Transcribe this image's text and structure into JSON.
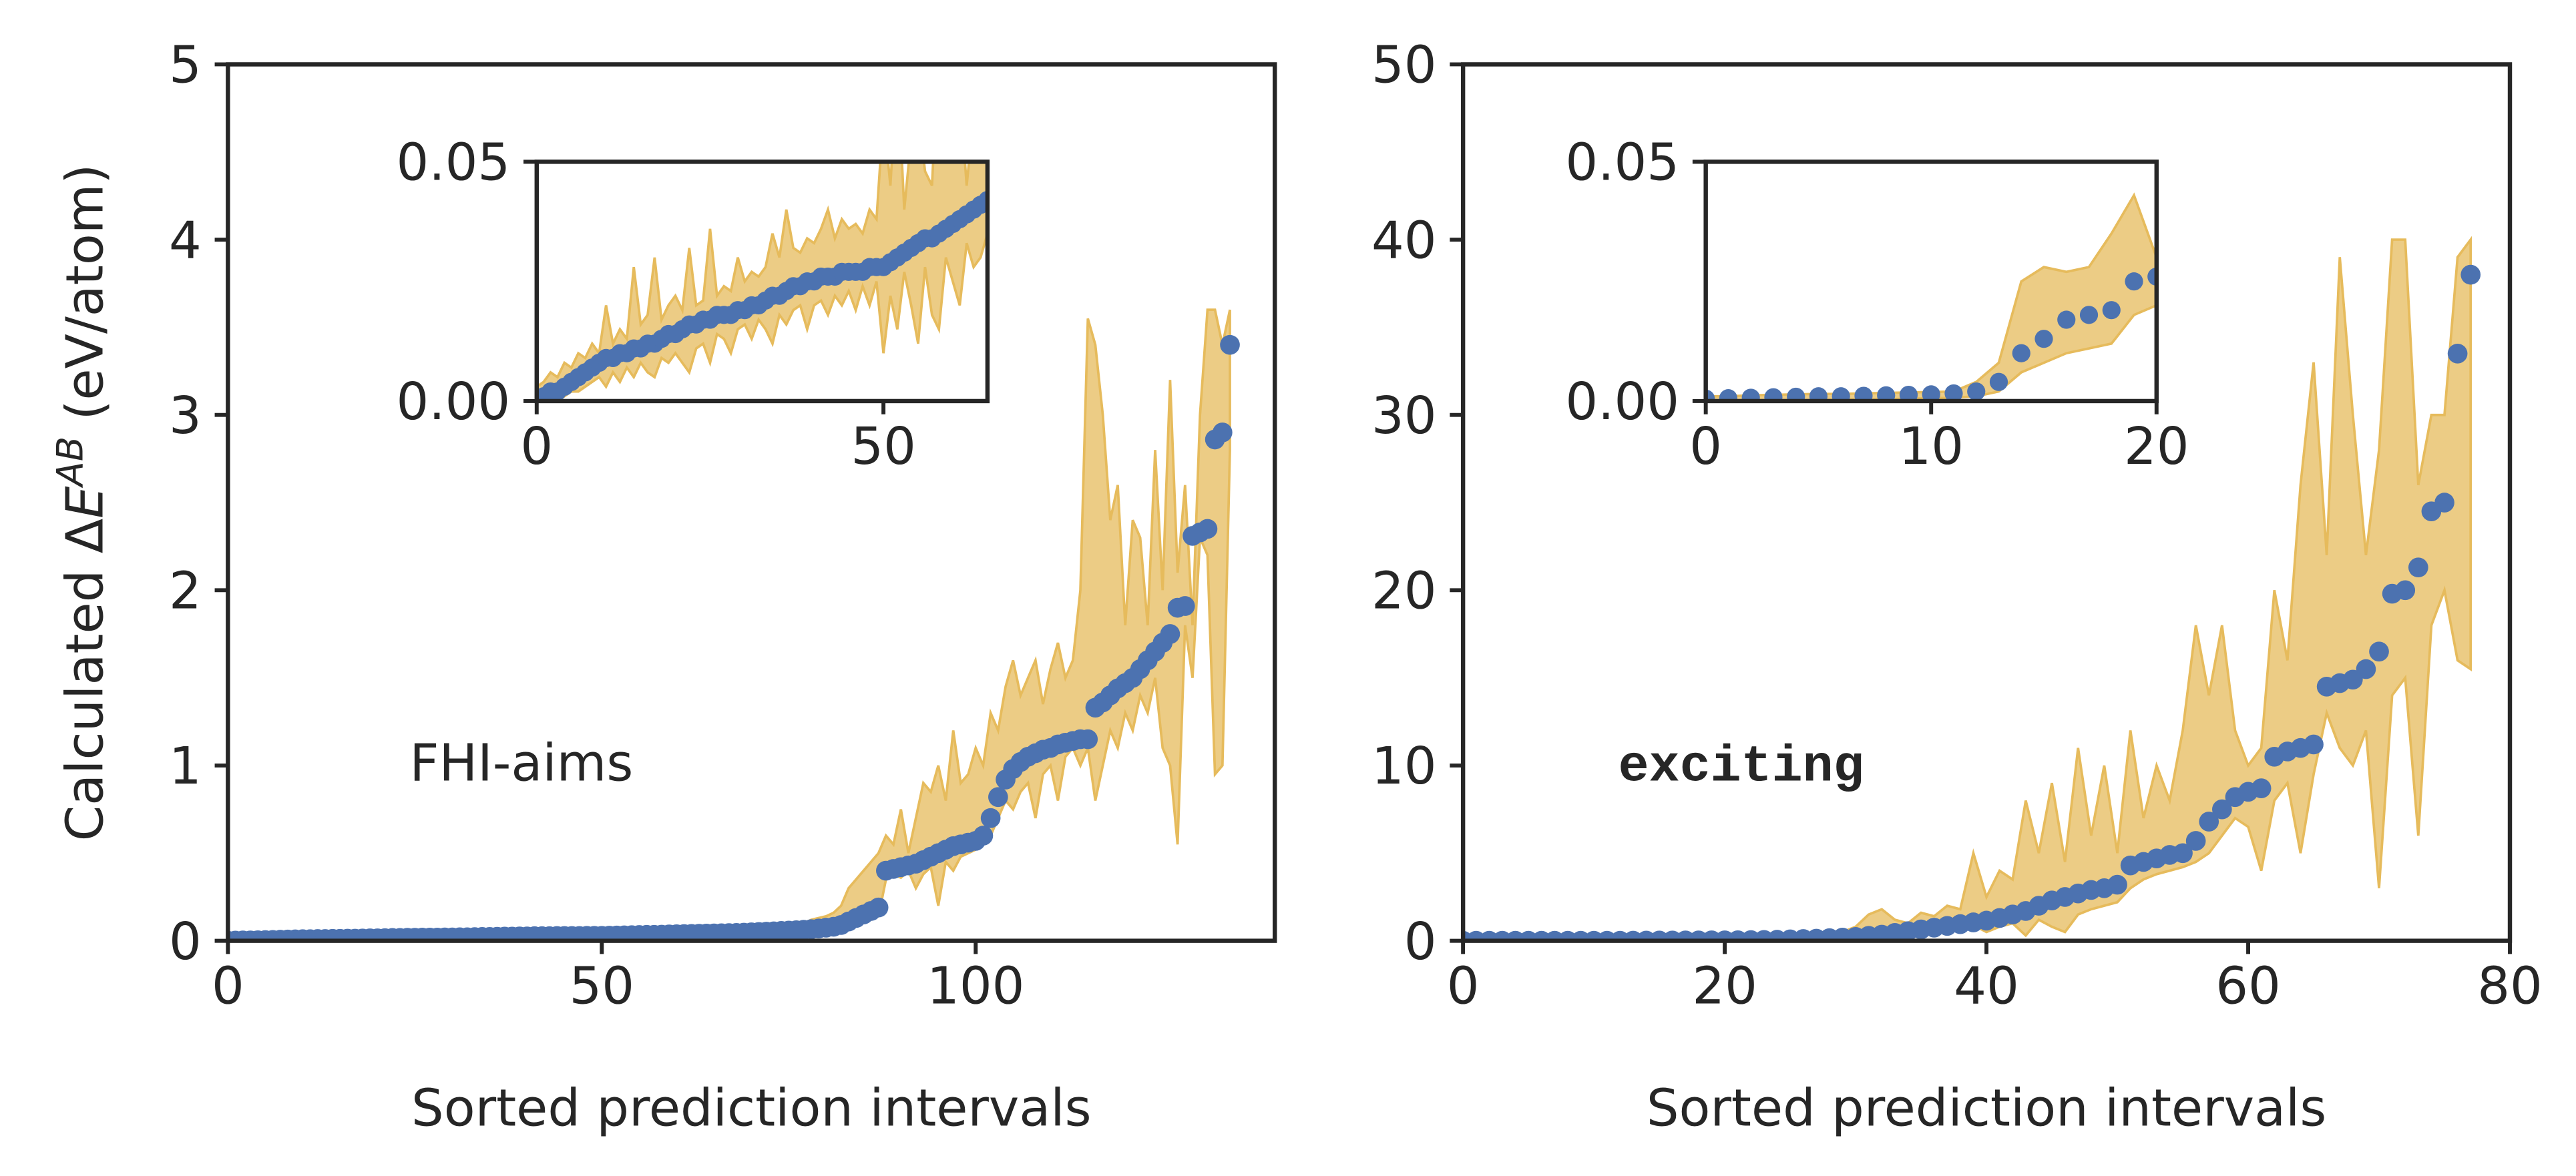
{
  "chart_data": [
    {
      "type": "scatter-band",
      "xlabel": "Sorted prediction intervals",
      "ylabel": {
        "prefix": "Calculated Δ",
        "symbol": "E",
        "superscript": "AB",
        "unit": " (eV/atom)"
      },
      "annotation": "FHI-aims",
      "xlim": [
        0,
        140
      ],
      "ylim": [
        0,
        5
      ],
      "xticks": [
        0,
        50,
        100
      ],
      "yticks": [
        0,
        1,
        2,
        3,
        4,
        5
      ],
      "x": [
        0,
        1,
        2,
        3,
        4,
        5,
        6,
        7,
        8,
        9,
        10,
        11,
        12,
        13,
        14,
        15,
        16,
        17,
        18,
        19,
        20,
        21,
        22,
        23,
        24,
        25,
        26,
        27,
        28,
        29,
        30,
        31,
        32,
        33,
        34,
        35,
        36,
        37,
        38,
        39,
        40,
        41,
        42,
        43,
        44,
        45,
        46,
        47,
        48,
        49,
        50,
        51,
        52,
        53,
        54,
        55,
        56,
        57,
        58,
        59,
        60,
        61,
        62,
        63,
        64,
        65,
        66,
        67,
        68,
        69,
        70,
        71,
        72,
        73,
        74,
        75,
        76,
        77,
        78,
        79,
        80,
        81,
        82,
        83,
        84,
        85,
        86,
        87,
        88,
        89,
        90,
        91,
        92,
        93,
        94,
        95,
        96,
        97,
        98,
        99,
        100,
        101,
        102,
        103,
        104,
        105,
        106,
        107,
        108,
        109,
        110,
        111,
        112,
        113,
        114,
        115,
        116,
        117,
        118,
        119,
        120,
        121,
        122,
        123,
        124,
        125,
        126,
        127,
        128,
        129,
        130,
        131,
        132,
        133,
        134
      ],
      "series": [
        {
          "color": "#4c72b0",
          "band_color": "#e6bb5c",
          "values": [
            0.0,
            0.001,
            0.002,
            0.002,
            0.003,
            0.004,
            0.005,
            0.006,
            0.007,
            0.008,
            0.009,
            0.009,
            0.01,
            0.01,
            0.011,
            0.011,
            0.012,
            0.012,
            0.013,
            0.014,
            0.014,
            0.015,
            0.016,
            0.016,
            0.017,
            0.017,
            0.018,
            0.018,
            0.018,
            0.019,
            0.019,
            0.02,
            0.02,
            0.021,
            0.022,
            0.022,
            0.023,
            0.024,
            0.024,
            0.025,
            0.025,
            0.026,
            0.026,
            0.026,
            0.027,
            0.027,
            0.027,
            0.027,
            0.028,
            0.028,
            0.028,
            0.029,
            0.03,
            0.031,
            0.032,
            0.033,
            0.034,
            0.034,
            0.035,
            0.036,
            0.037,
            0.038,
            0.039,
            0.04,
            0.041,
            0.042,
            0.043,
            0.044,
            0.045,
            0.046,
            0.048,
            0.05,
            0.052,
            0.054,
            0.056,
            0.058,
            0.06,
            0.063,
            0.066,
            0.07,
            0.075,
            0.08,
            0.09,
            0.11,
            0.13,
            0.15,
            0.17,
            0.19,
            0.4,
            0.41,
            0.42,
            0.43,
            0.44,
            0.46,
            0.48,
            0.5,
            0.52,
            0.54,
            0.55,
            0.56,
            0.57,
            0.6,
            0.7,
            0.82,
            0.92,
            0.98,
            1.02,
            1.05,
            1.07,
            1.09,
            1.1,
            1.12,
            1.13,
            1.14,
            1.15,
            1.15,
            1.33,
            1.36,
            1.4,
            1.44,
            1.47,
            1.5,
            1.55,
            1.6,
            1.65,
            1.7,
            1.75,
            1.9,
            1.91,
            2.31,
            2.33,
            2.35,
            2.86,
            2.9,
            3.4
          ],
          "upper": [
            0.003,
            0.004,
            0.006,
            0.005,
            0.008,
            0.007,
            0.01,
            0.009,
            0.012,
            0.01,
            0.02,
            0.012,
            0.015,
            0.013,
            0.028,
            0.016,
            0.018,
            0.03,
            0.017,
            0.02,
            0.022,
            0.019,
            0.032,
            0.02,
            0.021,
            0.036,
            0.022,
            0.024,
            0.023,
            0.03,
            0.025,
            0.027,
            0.026,
            0.028,
            0.035,
            0.03,
            0.04,
            0.032,
            0.031,
            0.034,
            0.033,
            0.036,
            0.04,
            0.034,
            0.038,
            0.036,
            0.037,
            0.035,
            0.04,
            0.038,
            0.06,
            0.045,
            0.07,
            0.04,
            0.055,
            0.06,
            0.048,
            0.045,
            0.075,
            0.05,
            0.055,
            0.065,
            0.045,
            0.06,
            0.07,
            0.075,
            0.065,
            0.07,
            0.08,
            0.075,
            0.08,
            0.085,
            0.09,
            0.095,
            0.1,
            0.09,
            0.11,
            0.1,
            0.12,
            0.13,
            0.14,
            0.16,
            0.2,
            0.3,
            0.35,
            0.4,
            0.45,
            0.5,
            0.6,
            0.55,
            0.75,
            0.5,
            0.7,
            0.9,
            0.85,
            1.0,
            0.8,
            1.2,
            0.9,
            0.95,
            1.1,
            1.0,
            1.3,
            1.2,
            1.45,
            1.6,
            1.4,
            1.5,
            1.6,
            1.35,
            1.55,
            1.7,
            1.5,
            1.6,
            2.0,
            3.55,
            3.4,
            3.0,
            2.4,
            2.6,
            1.8,
            2.4,
            2.3,
            1.8,
            2.8,
            2.0,
            3.2,
            2.1,
            2.6,
            1.8,
            3.0,
            3.6,
            3.6,
            3.4,
            3.6
          ],
          "lower": [
            0,
            0,
            0,
            0,
            0.001,
            0.002,
            0.002,
            0.003,
            0.004,
            0.005,
            0.003,
            0.006,
            0.004,
            0.007,
            0.005,
            0.008,
            0.006,
            0.005,
            0.009,
            0.008,
            0.01,
            0.008,
            0.006,
            0.011,
            0.012,
            0.008,
            0.014,
            0.013,
            0.01,
            0.015,
            0.016,
            0.013,
            0.017,
            0.015,
            0.012,
            0.018,
            0.016,
            0.019,
            0.02,
            0.015,
            0.02,
            0.021,
            0.018,
            0.022,
            0.02,
            0.023,
            0.019,
            0.024,
            0.02,
            0.025,
            0.01,
            0.022,
            0.015,
            0.027,
            0.02,
            0.012,
            0.028,
            0.018,
            0.015,
            0.03,
            0.025,
            0.02,
            0.033,
            0.028,
            0.03,
            0.035,
            0.036,
            0.038,
            0.037,
            0.04,
            0.04,
            0.042,
            0.044,
            0.046,
            0.048,
            0.05,
            0.052,
            0.055,
            0.058,
            0.06,
            0.06,
            0.07,
            0.08,
            0.09,
            0.1,
            0.11,
            0.12,
            0.14,
            0.35,
            0.38,
            0.36,
            0.4,
            0.3,
            0.38,
            0.42,
            0.2,
            0.45,
            0.4,
            0.48,
            0.5,
            0.52,
            0.55,
            0.6,
            0.7,
            0.8,
            0.75,
            0.85,
            0.9,
            0.7,
            0.95,
            1.0,
            0.8,
            1.05,
            1.1,
            1.0,
            1.1,
            0.8,
            1.0,
            1.2,
            1.1,
            1.3,
            1.2,
            1.4,
            1.3,
            1.5,
            1.1,
            1.0,
            0.55,
            1.8,
            1.5,
            2.3,
            2.2,
            0.95,
            1.0,
            2.8
          ]
        }
      ],
      "inset": {
        "xlim": [
          0,
          65
        ],
        "ylim": [
          0,
          0.05
        ],
        "xticks": [
          0,
          50
        ],
        "yticks": [
          {
            "value": 0,
            "label": "0.00"
          },
          {
            "value": 0.05,
            "label": "0.05"
          }
        ]
      }
    },
    {
      "type": "scatter-band",
      "xlabel": "Sorted prediction intervals",
      "annotation": "exciting",
      "xlim": [
        0,
        80
      ],
      "ylim": [
        0,
        50
      ],
      "xticks": [
        0,
        20,
        40,
        60,
        80
      ],
      "yticks": [
        0,
        10,
        20,
        30,
        40,
        50
      ],
      "x": [
        0,
        1,
        2,
        3,
        4,
        5,
        6,
        7,
        8,
        9,
        10,
        11,
        12,
        13,
        14,
        15,
        16,
        17,
        18,
        19,
        20,
        21,
        22,
        23,
        24,
        25,
        26,
        27,
        28,
        29,
        30,
        31,
        32,
        33,
        34,
        35,
        36,
        37,
        38,
        39,
        40,
        41,
        42,
        43,
        44,
        45,
        46,
        47,
        48,
        49,
        50,
        51,
        52,
        53,
        54,
        55,
        56,
        57,
        58,
        59,
        60,
        61,
        62,
        63,
        64,
        65,
        66,
        67,
        68,
        69,
        70,
        71,
        72,
        73,
        74,
        75,
        76,
        77
      ],
      "series": [
        {
          "color": "#4c72b0",
          "band_color": "#e6bb5c",
          "values": [
            0.0005,
            0.0006,
            0.0007,
            0.0008,
            0.0009,
            0.001,
            0.001,
            0.0011,
            0.0012,
            0.0013,
            0.0014,
            0.0016,
            0.002,
            0.004,
            0.01,
            0.013,
            0.017,
            0.018,
            0.019,
            0.025,
            0.026,
            0.03,
            0.04,
            0.05,
            0.06,
            0.08,
            0.1,
            0.12,
            0.15,
            0.18,
            0.22,
            0.28,
            0.35,
            0.45,
            0.55,
            0.65,
            0.75,
            0.85,
            0.95,
            1.05,
            1.15,
            1.3,
            1.5,
            1.7,
            2.0,
            2.3,
            2.5,
            2.7,
            2.9,
            3.0,
            3.2,
            4.3,
            4.5,
            4.7,
            4.9,
            5.0,
            5.7,
            6.8,
            7.5,
            8.2,
            8.5,
            8.7,
            10.5,
            10.8,
            11.0,
            11.2,
            14.5,
            14.7,
            14.9,
            15.5,
            16.5,
            19.8,
            20.0,
            21.3,
            24.5,
            25.0,
            33.5,
            38.0
          ],
          "upper": [
            0.001,
            0.001,
            0.0012,
            0.0013,
            0.0014,
            0.0015,
            0.0015,
            0.0016,
            0.0017,
            0.0018,
            0.0019,
            0.002,
            0.004,
            0.008,
            0.025,
            0.028,
            0.027,
            0.028,
            0.035,
            0.043,
            0.03,
            0.08,
            0.1,
            0.12,
            0.15,
            0.2,
            0.25,
            0.3,
            0.4,
            0.5,
            0.8,
            1.5,
            1.8,
            1.2,
            1.0,
            1.6,
            1.4,
            2.0,
            1.8,
            5.0,
            2.5,
            4.0,
            3.5,
            8.0,
            5.0,
            9.0,
            4.5,
            11.0,
            6.0,
            10.0,
            5.0,
            12.0,
            7.0,
            10.0,
            8.0,
            12.0,
            18.0,
            14.0,
            18.0,
            12.0,
            10.0,
            11.0,
            20.0,
            16.0,
            26.0,
            33.0,
            22.0,
            39.0,
            30.0,
            22.0,
            28.0,
            40.0,
            40.0,
            26.0,
            30.0,
            30.0,
            39.0,
            40.0
          ],
          "lower": [
            0,
            0,
            0,
            0.0001,
            0.0002,
            0.0002,
            0.0003,
            0.0003,
            0.0004,
            0.0005,
            0.0006,
            0.0007,
            0.001,
            0.002,
            0.006,
            0.008,
            0.01,
            0.011,
            0.012,
            0.018,
            0.02,
            0,
            0,
            0,
            0,
            0.02,
            0.03,
            0.04,
            0.05,
            0.06,
            0.08,
            0.1,
            0.15,
            0.2,
            0.3,
            0.4,
            0.5,
            0.6,
            0.7,
            0.9,
            0.5,
            0.8,
            1.0,
            0.3,
            1.2,
            0.8,
            0.5,
            1.5,
            1.8,
            2.0,
            2.2,
            3.0,
            3.5,
            3.8,
            4.0,
            4.2,
            4.5,
            5.0,
            6.0,
            7.0,
            6.5,
            4.0,
            8.0,
            9.0,
            5.0,
            9.5,
            13.0,
            11.0,
            10.0,
            12.0,
            3.0,
            14.0,
            15.0,
            6.0,
            18.0,
            20.0,
            16.0,
            15.5
          ]
        }
      ],
      "inset": {
        "xlim": [
          0,
          20
        ],
        "ylim": [
          0,
          0.05
        ],
        "xticks": [
          0,
          10,
          20
        ],
        "yticks": [
          {
            "value": 0,
            "label": "0.00"
          },
          {
            "value": 0.05,
            "label": "0.05"
          }
        ]
      }
    }
  ]
}
